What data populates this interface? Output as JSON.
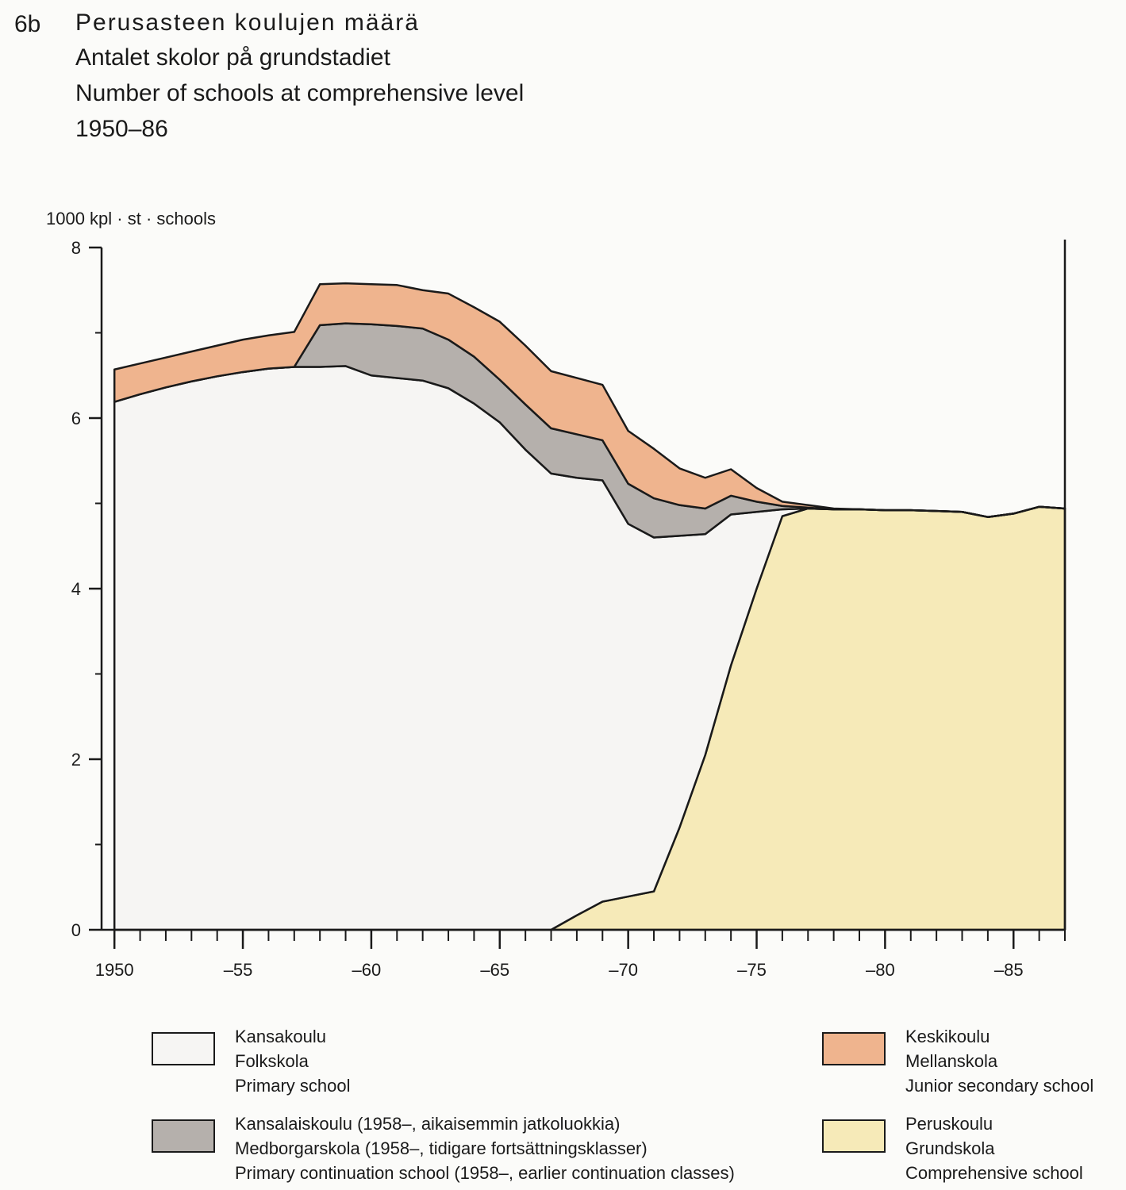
{
  "chart_data": {
    "type": "stacked_area",
    "figure_label": "6b",
    "title": "Perusasteen koulujen määrä",
    "subtitle_sv": "Antalet skolor på grundstadiet",
    "subtitle_en": "Number of schools at comprehensive level",
    "period": "1950–86",
    "y_axis_label": "1000 kpl · st · schools",
    "x": [
      1950,
      1951,
      1952,
      1953,
      1954,
      1955,
      1956,
      1957,
      1958,
      1959,
      1960,
      1961,
      1962,
      1963,
      1964,
      1965,
      1966,
      1967,
      1968,
      1969,
      1970,
      1971,
      1972,
      1973,
      1974,
      1975,
      1976,
      1977,
      1978,
      1979,
      1980,
      1981,
      1982,
      1983,
      1984,
      1985,
      1986,
      1987
    ],
    "xlim": [
      1949.5,
      1987
    ],
    "xticks": [
      1950,
      {
        "value": 1955,
        "label": "–55"
      },
      {
        "value": 1960,
        "label": "–60"
      },
      {
        "value": 1965,
        "label": "–65"
      },
      {
        "value": 1970,
        "label": "–70"
      },
      {
        "value": 1975,
        "label": "–75"
      },
      {
        "value": 1980,
        "label": "–80"
      },
      {
        "value": 1985,
        "label": "–85"
      }
    ],
    "ylim": [
      0,
      8
    ],
    "yticks": [
      0,
      2,
      4,
      6,
      8
    ],
    "series": [
      {
        "name": "Peruskoulu",
        "name_sv": "Grundskola",
        "name_en": "Comprehensive school",
        "color": "#f6eab8",
        "values": [
          0,
          0,
          0,
          0,
          0,
          0,
          0,
          0,
          0,
          0,
          0,
          0,
          0,
          0,
          0,
          0,
          0,
          0,
          0.17,
          0.33,
          0.39,
          0.45,
          1.2,
          2.05,
          3.1,
          4.0,
          4.85,
          4.94,
          4.93,
          4.93,
          4.92,
          4.92,
          4.91,
          4.9,
          4.84,
          4.88,
          4.96,
          4.94
        ]
      },
      {
        "name": "Kansakoulu",
        "name_sv": "Folkskola",
        "name_en": "Primary school",
        "color": "#f6f5f3",
        "values": [
          6.19,
          6.28,
          6.36,
          6.43,
          6.49,
          6.54,
          6.58,
          6.6,
          6.6,
          6.61,
          6.5,
          6.47,
          6.44,
          6.35,
          6.17,
          5.95,
          5.63,
          5.35,
          5.13,
          4.94,
          4.37,
          4.15,
          3.42,
          2.59,
          1.77,
          0.9,
          0.08,
          0,
          0,
          0,
          0,
          0,
          0,
          0,
          0,
          0,
          0,
          0
        ]
      },
      {
        "name": "Kansalaiskoulu (1958–, aikaisemmin jatkoluokkia)",
        "name_sv": "Medborgarskola (1958–, tidigare fortsättningsklasser)",
        "name_en": "Primary continuation school (1958–, earlier continuation classes)",
        "color": "#b5b0ac",
        "values": [
          0,
          0,
          0,
          0,
          0,
          0,
          0,
          0,
          0.49,
          0.5,
          0.6,
          0.61,
          0.61,
          0.57,
          0.55,
          0.5,
          0.53,
          0.53,
          0.51,
          0.47,
          0.47,
          0.46,
          0.36,
          0.3,
          0.22,
          0.12,
          0.04,
          0.01,
          0,
          0,
          0,
          0,
          0,
          0,
          0,
          0,
          0,
          0
        ]
      },
      {
        "name": "Keskikoulu",
        "name_sv": "Mellanskola",
        "name_en": "Junior secondary school",
        "color": "#efb48e",
        "values": [
          0.38,
          0.36,
          0.35,
          0.35,
          0.36,
          0.38,
          0.39,
          0.41,
          0.48,
          0.47,
          0.47,
          0.48,
          0.45,
          0.54,
          0.58,
          0.68,
          0.69,
          0.67,
          0.66,
          0.65,
          0.62,
          0.58,
          0.43,
          0.36,
          0.31,
          0.16,
          0.05,
          0.03,
          0.01,
          0,
          0,
          0,
          0,
          0,
          0,
          0,
          0,
          0
        ]
      }
    ]
  }
}
